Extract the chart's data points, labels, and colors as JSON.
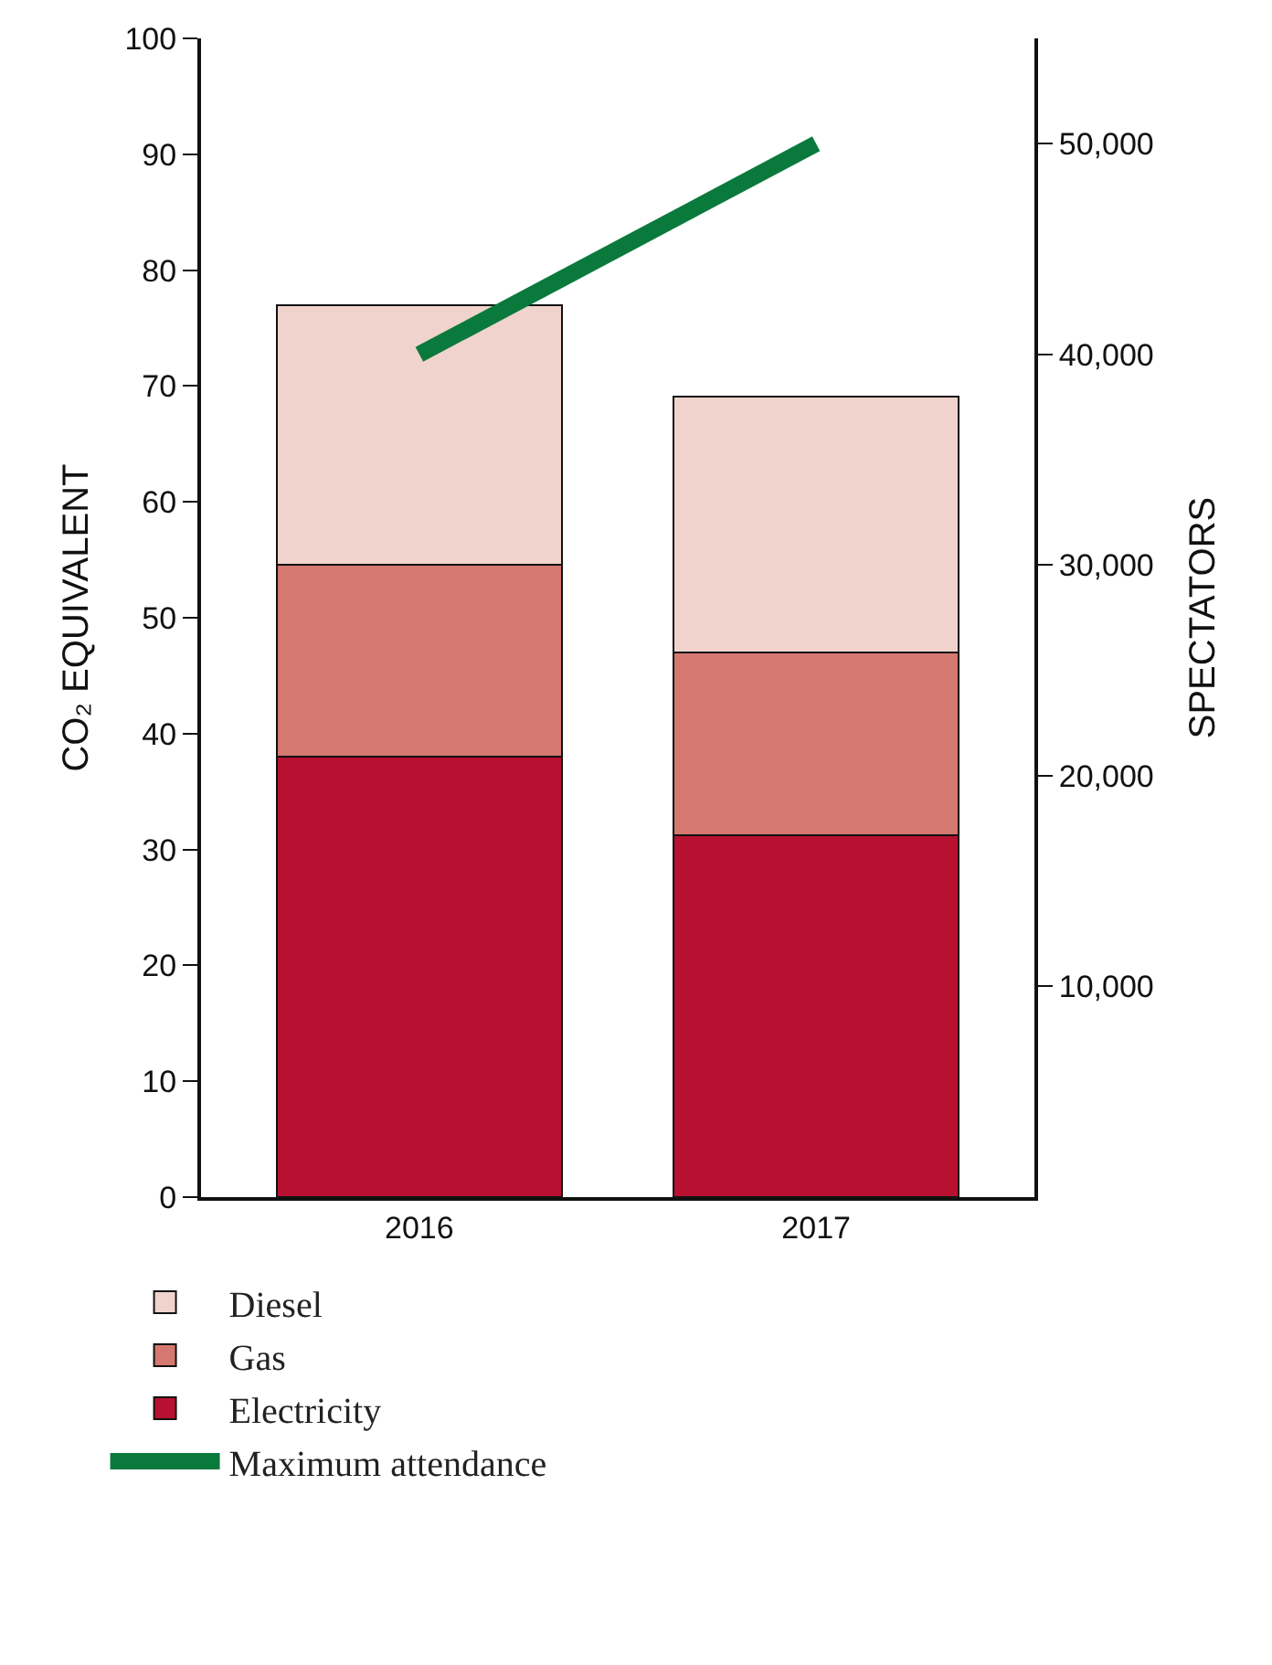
{
  "chart_data": {
    "type": "bar",
    "stacked": true,
    "categories": [
      "2016",
      "2017"
    ],
    "series": [
      {
        "name": "Electricity",
        "color": "#b81030",
        "values": [
          38.0,
          31.2
        ]
      },
      {
        "name": "Gas",
        "color": "#d47870",
        "values": [
          16.6,
          15.8
        ]
      },
      {
        "name": "Diesel",
        "color": "#efd3cc",
        "values": [
          22.4,
          22.1
        ]
      },
      {
        "name": "Maximum attendance",
        "type": "line",
        "axis": "y2",
        "color": "#0a7a3c",
        "values": [
          40000,
          50000
        ],
        "marker": "none"
      }
    ],
    "ylabel": "CO₂ EQUIVALENT",
    "y2label": "SPECTATORS",
    "ylim": [
      0,
      100
    ],
    "yticks": [
      0,
      10,
      20,
      30,
      40,
      50,
      60,
      70,
      80,
      90,
      100
    ],
    "y2lim": [
      0,
      55000
    ],
    "y2ticks": [
      {
        "value": 10000,
        "label": "10,000"
      },
      {
        "value": 20000,
        "label": "20,000"
      },
      {
        "value": 30000,
        "label": "30,000"
      },
      {
        "value": 40000,
        "label": "40,000"
      },
      {
        "value": 50000,
        "label": "50,000"
      }
    ],
    "grid": false,
    "legend": "bottom"
  }
}
